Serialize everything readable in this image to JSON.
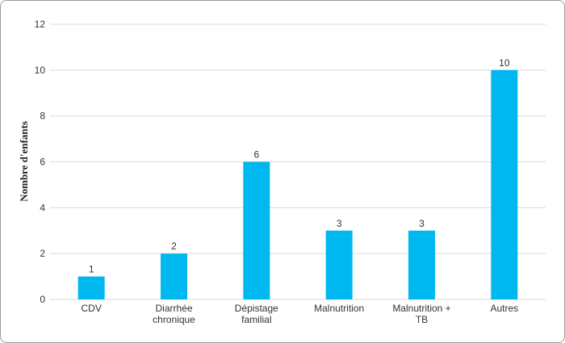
{
  "chart_data": {
    "type": "bar",
    "title": "",
    "xlabel": "",
    "ylabel": "Nombre d'enfants",
    "categories": [
      [
        "CDV"
      ],
      [
        "Diarrhée",
        "chronique"
      ],
      [
        "Dépistage",
        "familial"
      ],
      [
        "Malnutrition"
      ],
      [
        "Malnutrition +",
        "TB"
      ],
      [
        "Autres"
      ]
    ],
    "values": [
      1,
      2,
      6,
      3,
      3,
      10
    ],
    "ylim": [
      0,
      12
    ],
    "yticks": [
      0,
      2,
      4,
      6,
      8,
      10,
      12
    ],
    "grid": true,
    "bar_color": "#00b8f0",
    "grid_color": "#d9d9d9"
  }
}
